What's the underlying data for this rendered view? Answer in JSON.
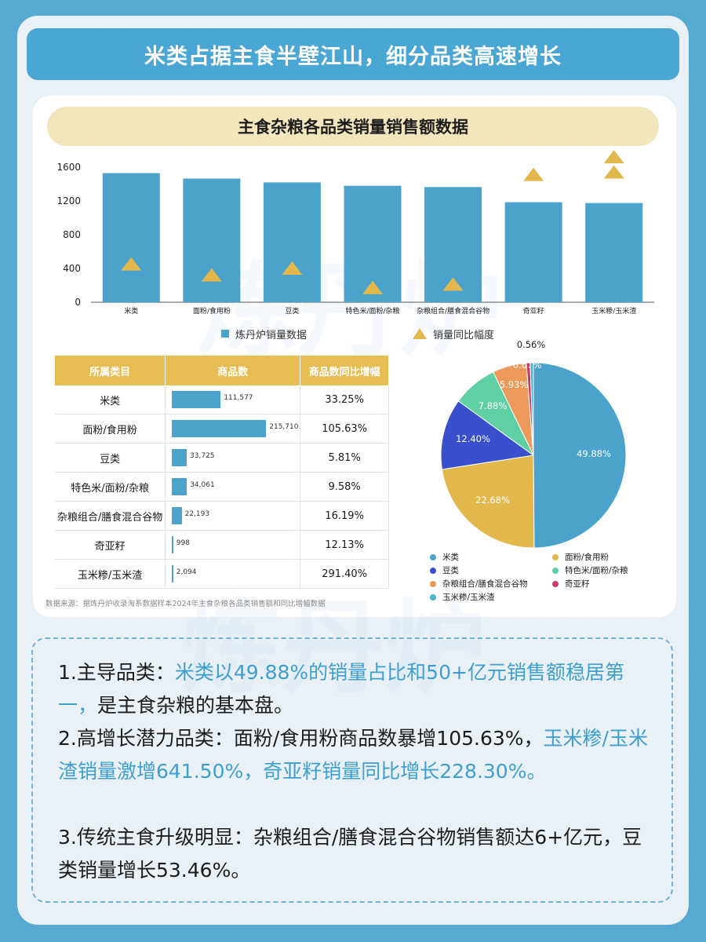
{
  "header": {
    "title": "米类占据主食半壁江山，细分品类高速增长"
  },
  "chart_title": "主食杂粮各品类销量销售额数据",
  "chart_data": [
    {
      "type": "bar",
      "categories": [
        "米类",
        "面粉/食用粉",
        "豆类",
        "特色米/面粉/杂粮",
        "杂粮组合/膳食混合谷物",
        "奇亚籽",
        "玉米糁/玉米渣"
      ],
      "series": [
        {
          "name": "炼丹炉销量数据",
          "values": [
            1530,
            1465,
            1420,
            1380,
            1365,
            1185,
            1175
          ]
        },
        {
          "name": "销量同比幅度",
          "marker": "triangle",
          "values": [
            450,
            320,
            400,
            170,
            210,
            1510,
            1540
          ]
        }
      ],
      "yticks": [
        "0",
        "400",
        "800",
        "1200",
        "1600"
      ],
      "ylim": [
        0,
        1600
      ],
      "legend_position": "bottom"
    },
    {
      "type": "table",
      "columns": [
        "所属类目",
        "商品数",
        "商品数同比增幅"
      ],
      "rows": [
        {
          "category": "米类",
          "count": 111577,
          "count_label": "111,577",
          "growth": "33.25%"
        },
        {
          "category": "面粉/食用粉",
          "count": 215710,
          "count_label": "215,710",
          "growth": "105.63%"
        },
        {
          "category": "豆类",
          "count": 33725,
          "count_label": "33,725",
          "growth": "5.81%"
        },
        {
          "category": "特色米/面粉/杂粮",
          "count": 34061,
          "count_label": "34,061",
          "growth": "9.58%"
        },
        {
          "category": "杂粮组合/膳食混合谷物",
          "count": 22193,
          "count_label": "22,193",
          "growth": "16.19%"
        },
        {
          "category": "奇亚籽",
          "count": 998,
          "count_label": "998",
          "growth": "12.13%"
        },
        {
          "category": "玉米糁/玉米渣",
          "count": 2094,
          "count_label": "2,094",
          "growth": "291.40%"
        }
      ]
    },
    {
      "type": "pie",
      "slices": [
        {
          "name": "米类",
          "value": 49.88,
          "label": "49.88%",
          "color": "#4ba3cc"
        },
        {
          "name": "面粉/食用粉",
          "value": 22.68,
          "label": "22.68%",
          "color": "#e2b84c"
        },
        {
          "name": "豆类",
          "value": 12.4,
          "label": "12.40%",
          "color": "#3a4fcb"
        },
        {
          "name": "特色米/面粉/杂粮",
          "value": 7.88,
          "label": "7.88%",
          "color": "#5fcfa4"
        },
        {
          "name": "杂粮组合/膳食混合谷物",
          "value": 5.93,
          "label": "5.93%",
          "color": "#ec9a5c"
        },
        {
          "name": "奇亚籽",
          "value": 0.67,
          "label": "0.67%",
          "color": "#c83b6e"
        },
        {
          "name": "玉米糁/玉米渣",
          "value": 0.56,
          "label": "0.56%",
          "color": "#4bb5c9"
        }
      ],
      "legend_position": "bottom"
    }
  ],
  "source_note": "数据来源：据炼丹炉收录淘系数据样本2024年主食杂粮各品类销售额和同比增幅数据",
  "watermark": "炼丹炉",
  "colors": {
    "bar": "#4ba3cc",
    "triangle": "#e2b84c",
    "table_header": "#e6bd52",
    "highlight": "#3e9fcf"
  },
  "summary": [
    {
      "label": "1.主导品类：",
      "highlight": "米类以49.88%的销量占比和50+亿元销售额稳居第一，",
      "rest": "是主食杂粮的基本盘。"
    },
    {
      "label": "2.高增长潜力品类：",
      "plain": "面粉/食用粉商品数暴增105.63%，",
      "highlight": "玉米糁/玉米渣销量激增641.50%，奇亚籽销量同比增长228.30%。"
    },
    {
      "label": "3.传统主食升级明显：",
      "rest": "杂粮组合/膳食混合谷物销售额达6+亿元，豆类销量增长53.46%。"
    }
  ]
}
